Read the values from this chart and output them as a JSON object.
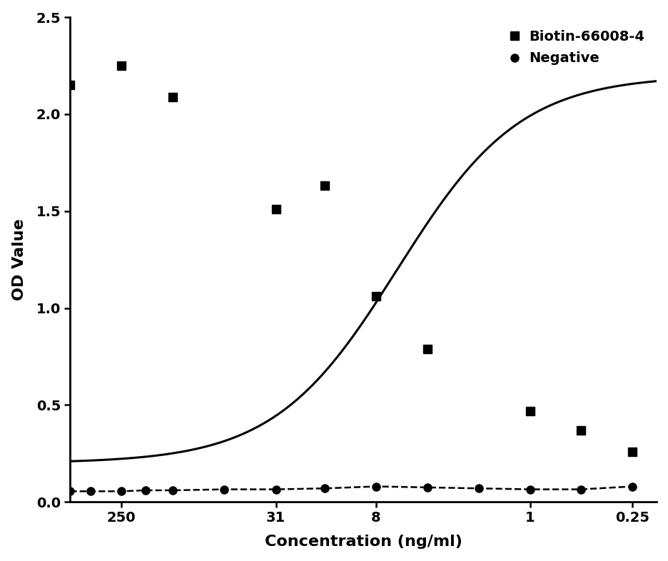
{
  "xlabel": "Concentration (ng/ml)",
  "ylabel": "OD Value",
  "ylim": [
    0.0,
    2.5
  ],
  "xtick_labels": [
    "250",
    "31",
    "8",
    "1",
    "0.25"
  ],
  "xtick_positions": [
    250,
    31,
    8,
    1,
    0.25
  ],
  "xlim_left": 500,
  "xlim_right": 0.18,
  "biotin_x": [
    500,
    250,
    125,
    31,
    16,
    8,
    4,
    1,
    0.5,
    0.25
  ],
  "biotin_y": [
    2.15,
    2.25,
    2.09,
    1.51,
    1.63,
    1.06,
    0.79,
    0.47,
    0.37,
    0.26
  ],
  "negative_x": [
    500,
    380,
    250,
    180,
    125,
    62.5,
    31,
    16,
    8,
    4,
    2,
    1,
    0.5,
    0.25
  ],
  "negative_y": [
    0.055,
    0.055,
    0.055,
    0.06,
    0.06,
    0.065,
    0.065,
    0.07,
    0.08,
    0.075,
    0.07,
    0.065,
    0.065,
    0.08
  ],
  "legend_labels": [
    "Biotin-66008-4",
    "Negative"
  ],
  "line_color": "#000000",
  "marker_color": "#000000",
  "background_color": "#ffffff",
  "label_fontsize": 16,
  "tick_fontsize": 14,
  "legend_fontsize": 14
}
